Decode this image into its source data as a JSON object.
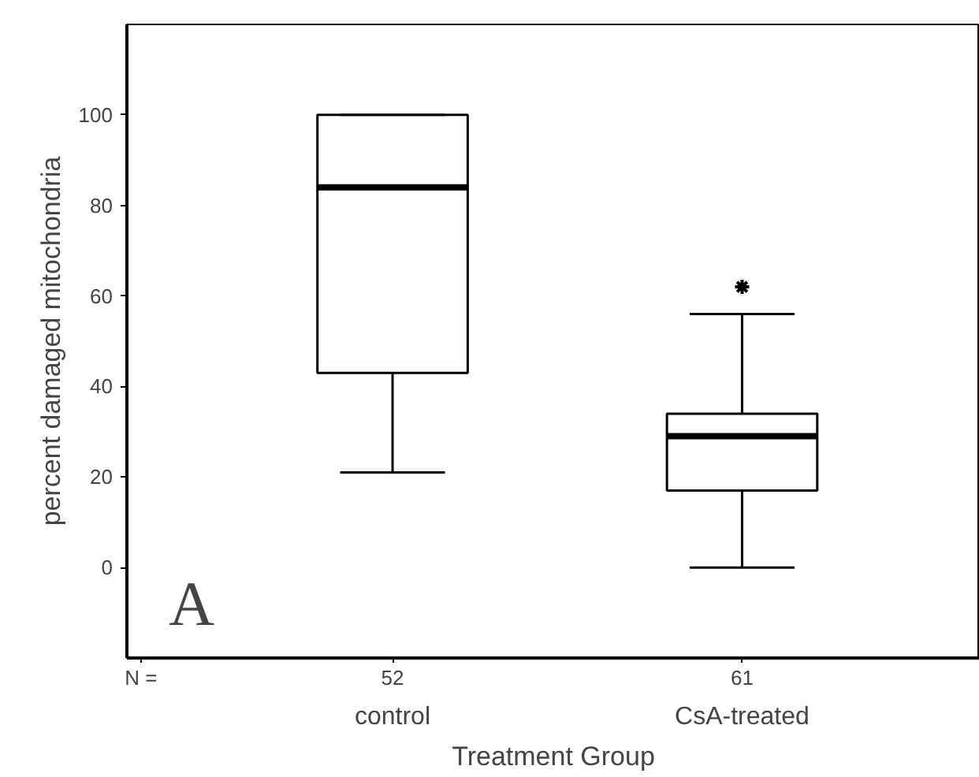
{
  "chart_data": {
    "type": "box",
    "categories": [
      "control",
      "CsA-treated"
    ],
    "boxes": [
      {
        "low": 21,
        "q1": 43,
        "median": 84,
        "q3": 100,
        "high": 100
      },
      {
        "low": 0,
        "q1": 17,
        "median": 29,
        "q3": 34,
        "high": 56,
        "outliers": [
          62
        ]
      }
    ],
    "ylim": [
      -20,
      120
    ],
    "yticks": [
      0,
      20,
      40,
      60,
      80,
      100
    ],
    "xlabel": "Treatment Group",
    "ylabel": "percent damaged mitochondria",
    "annotations": [
      "N =",
      "52",
      "61",
      "A"
    ],
    "grid": false,
    "marker": "asterisk"
  }
}
